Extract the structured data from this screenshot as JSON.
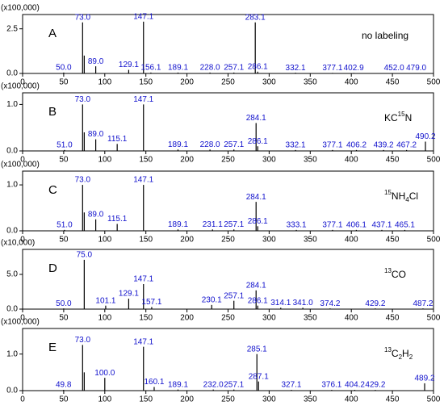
{
  "chart_data": [
    {
      "type": "bar",
      "label": "A",
      "y_unit": "(x100,000)",
      "annotation": [
        {
          "t": "no labeling"
        }
      ],
      "ylim": [
        0,
        3.3
      ],
      "yticks": [
        {
          "value": 0,
          "label": "0.0"
        },
        {
          "value": 2.5,
          "label": "2.5"
        }
      ],
      "xlim": [
        0,
        500
      ],
      "xticks": [
        0,
        50,
        100,
        150,
        200,
        250,
        300,
        350,
        400,
        450,
        500
      ],
      "x": [
        50.0,
        73.0,
        75,
        89.0,
        129.1,
        147.1,
        156.1,
        189.1,
        228.0,
        257.1,
        283.1,
        286.1,
        332.1,
        377.1,
        402.9,
        452.0,
        479.0
      ],
      "x_labels": [
        "50.0",
        "73.0",
        null,
        "89.0",
        "129.1",
        "147.1",
        "156.1",
        "189.1",
        "228.0",
        "257.1",
        "283.1",
        "286.1",
        "332.1",
        "377.1",
        "402.9",
        "452.0",
        "479.0"
      ],
      "values": [
        0.05,
        2.86,
        1.0,
        0.4,
        0.2,
        2.9,
        0.05,
        0.05,
        0.05,
        0.05,
        2.86,
        0.1,
        0.04,
        0.03,
        0.03,
        0.02,
        0.02
      ],
      "color": "#000000",
      "label_color": "#1010cc"
    },
    {
      "type": "bar",
      "label": "B",
      "y_unit": "(x100,000)",
      "annotation": [
        {
          "t": "KC"
        },
        {
          "t": "15",
          "s": "sup"
        },
        {
          "t": "N"
        }
      ],
      "ylim": [
        0,
        1.25
      ],
      "yticks": [
        {
          "value": 0,
          "label": "0.0"
        },
        {
          "value": 1,
          "label": "1.0"
        }
      ],
      "xlim": [
        0,
        500
      ],
      "xticks": [
        0,
        50,
        100,
        150,
        200,
        250,
        300,
        350,
        400,
        450,
        500
      ],
      "x": [
        51.0,
        73.0,
        75,
        89.0,
        115.1,
        147.1,
        189.1,
        228.0,
        257.1,
        284.1,
        286.1,
        332.1,
        377.1,
        406.2,
        439.2,
        467.2,
        490.2
      ],
      "x_labels": [
        "51.0",
        "73.0",
        null,
        "89.0",
        "115.1",
        "147.1",
        "189.1",
        "228.0",
        "257.1",
        "284.1",
        "286.1",
        "332.1",
        "377.1",
        "406.2",
        "439.2",
        "467.2",
        "490.2"
      ],
      "values": [
        0.02,
        1.0,
        0.4,
        0.25,
        0.15,
        1.0,
        0.03,
        0.03,
        0.03,
        0.6,
        0.1,
        0.02,
        0.02,
        0.02,
        0.02,
        0.02,
        0.2
      ],
      "color": "#000000",
      "label_color": "#1010cc"
    },
    {
      "type": "bar",
      "label": "C",
      "y_unit": "(x100,000)",
      "annotation": [
        {
          "t": "15",
          "s": "sup"
        },
        {
          "t": "NH"
        },
        {
          "t": "4",
          "s": "sub"
        },
        {
          "t": "Cl"
        }
      ],
      "ylim": [
        0,
        1.3
      ],
      "yticks": [
        {
          "value": 0,
          "label": "0.0"
        },
        {
          "value": 1,
          "label": "1.0"
        }
      ],
      "xlim": [
        0,
        500
      ],
      "xticks": [
        0,
        50,
        100,
        150,
        200,
        250,
        300,
        350,
        400,
        450,
        500
      ],
      "x": [
        51.0,
        73.0,
        75,
        89.0,
        115.1,
        147.1,
        189.1,
        231.1,
        257.1,
        284.1,
        286.1,
        333.1,
        377.1,
        406.1,
        437.1,
        465.1
      ],
      "x_labels": [
        "51.0",
        "73.0",
        null,
        "89.0",
        "115.1",
        "147.1",
        "189.1",
        "231.1",
        "257.1",
        "284.1",
        "286.1",
        "333.1",
        "377.1",
        "406.1",
        "437.1",
        "465.1"
      ],
      "values": [
        0.02,
        1.0,
        0.4,
        0.25,
        0.15,
        1.0,
        0.03,
        0.03,
        0.03,
        0.63,
        0.1,
        0.02,
        0.02,
        0.02,
        0.02,
        0.02
      ],
      "color": "#000000",
      "label_color": "#1010cc"
    },
    {
      "type": "bar",
      "label": "D",
      "y_unit": "(x10,000)",
      "annotation": [
        {
          "t": "13",
          "s": "sup"
        },
        {
          "t": "CO"
        }
      ],
      "ylim": [
        0,
        8.6
      ],
      "yticks": [
        {
          "value": 0,
          "label": "0.0"
        },
        {
          "value": 5,
          "label": "5.0"
        }
      ],
      "xlim": [
        0,
        500
      ],
      "xticks": [
        0,
        50,
        100,
        150,
        200,
        250,
        300,
        350,
        400,
        450,
        500
      ],
      "x": [
        50.0,
        75.0,
        101.1,
        129.1,
        147.1,
        157.1,
        230.1,
        257.1,
        284.1,
        286.1,
        314.1,
        341.0,
        374.2,
        429.2,
        487.2
      ],
      "x_labels": [
        "50.0",
        "75.0",
        "101.1",
        "129.1",
        "147.1",
        "157.1",
        "230.1",
        "257.1",
        "284.1",
        "286.1",
        "314.1",
        "341.0",
        "374.2",
        "429.2",
        "487.2"
      ],
      "values": [
        0.1,
        7.1,
        0.5,
        1.5,
        3.6,
        0.3,
        0.6,
        1.2,
        2.7,
        0.5,
        0.2,
        0.2,
        0.1,
        0.1,
        0.1
      ],
      "color": "#000000",
      "label_color": "#1010cc"
    },
    {
      "type": "bar",
      "label": "E",
      "y_unit": "(x100,000)",
      "annotation": [
        {
          "t": "13",
          "s": "sup"
        },
        {
          "t": "C"
        },
        {
          "t": "2",
          "s": "sub"
        },
        {
          "t": "H"
        },
        {
          "t": "2",
          "s": "sub"
        }
      ],
      "ylim": [
        0,
        1.7
      ],
      "yticks": [
        {
          "value": 0,
          "label": "0.0"
        },
        {
          "value": 1,
          "label": "1.0"
        }
      ],
      "xlim": [
        0,
        500
      ],
      "xticks": [
        0,
        50,
        100,
        150,
        200,
        250,
        300,
        350,
        400,
        450,
        500
      ],
      "x": [
        49.8,
        73.0,
        75,
        100.0,
        147.1,
        160.1,
        189.1,
        232.0,
        257.1,
        285.1,
        287.1,
        327.1,
        376.1,
        404.2,
        429.2,
        489.2
      ],
      "x_labels": [
        "49.8",
        "73.0",
        null,
        "100.0",
        "147.1",
        "160.1",
        "189.1",
        "232.0",
        "257.1",
        "285.1",
        "287.1",
        "327.1",
        "376.1",
        "404.2",
        "429.2",
        "489.2"
      ],
      "values": [
        0.02,
        1.25,
        0.5,
        0.35,
        1.2,
        0.1,
        0.03,
        0.03,
        0.03,
        1.0,
        0.25,
        0.02,
        0.02,
        0.02,
        0.02,
        0.2
      ],
      "color": "#000000",
      "label_color": "#1010cc"
    }
  ]
}
